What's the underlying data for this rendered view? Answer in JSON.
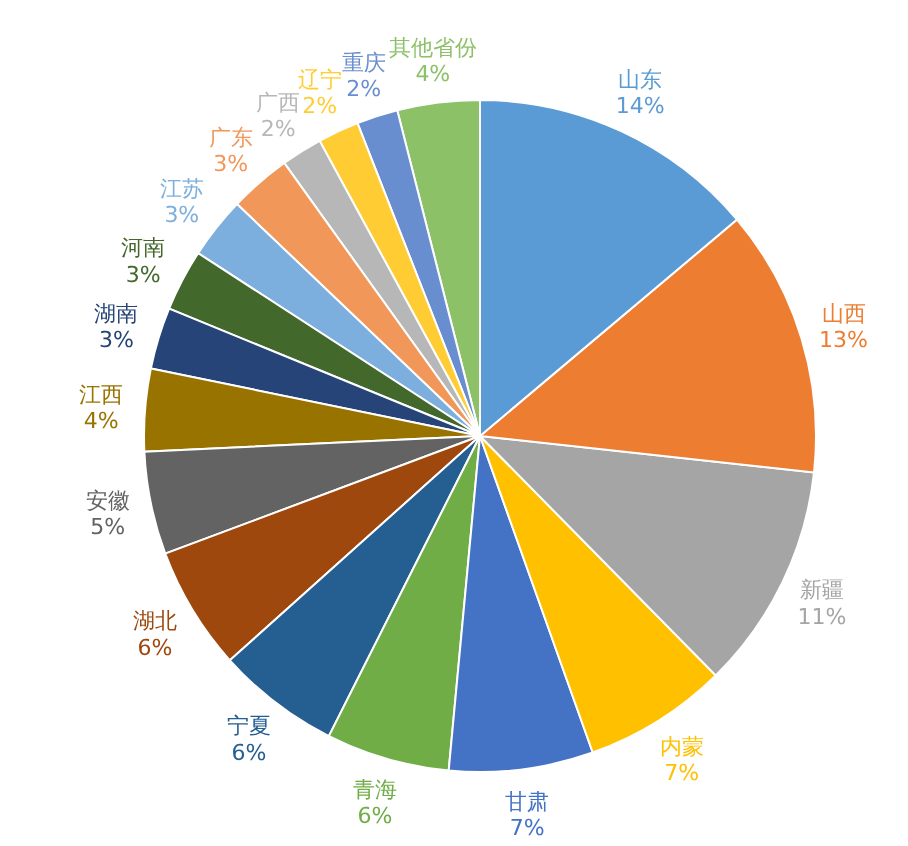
{
  "chart_data": {
    "type": "pie",
    "categories": [
      "其他省份",
      "重庆",
      "辽宁",
      "广西",
      "广东",
      "江苏",
      "河南",
      "湖南",
      "江西",
      "安徽",
      "湖北",
      "宁夏",
      "青海",
      "甘肃",
      "内蒙",
      "新疆",
      "山西",
      "山东"
    ],
    "values": [
      4,
      2,
      2,
      2,
      3,
      3,
      3,
      3,
      4,
      5,
      6,
      6,
      6,
      7,
      7,
      11,
      13,
      14
    ],
    "value_labels": [
      "4%",
      "2%",
      "2%",
      "2%",
      "3%",
      "3%",
      "3%",
      "3%",
      "4%",
      "5%",
      "6%",
      "6%",
      "6%",
      "7%",
      "7%",
      "11%",
      "13%",
      "14%"
    ],
    "colors": [
      "#8cc168",
      "#698ed0",
      "#ffcd33",
      "#b7b7b7",
      "#f1975a",
      "#7cafdd",
      "#43682b",
      "#264478",
      "#997300",
      "#636363",
      "#9e480e",
      "#255e91",
      "#70ad47",
      "#4472c4",
      "#ffc000",
      "#a5a5a5",
      "#ed7d31",
      "#5b9bd5"
    ],
    "legend": false
  }
}
